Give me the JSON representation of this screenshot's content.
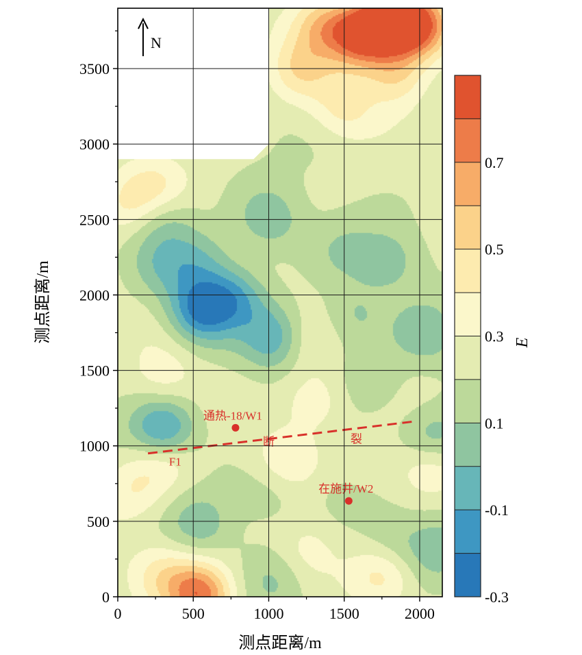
{
  "chart_data": {
    "type": "heatmap",
    "title": "",
    "xlabel": "测点距离/m",
    "ylabel": "测点距离/m",
    "xlim": [
      0,
      2150
    ],
    "ylim": [
      0,
      3900
    ],
    "x_ticks": [
      0,
      500,
      1000,
      1500,
      2000
    ],
    "y_ticks": [
      0,
      500,
      1000,
      1500,
      2000,
      2500,
      3000,
      3500
    ],
    "grid": true,
    "north_arrow_label": "N",
    "no_data_region": [
      [
        0,
        2900
      ],
      [
        900,
        2900
      ],
      [
        1000,
        3000
      ],
      [
        1000,
        3900
      ],
      [
        0,
        3900
      ]
    ],
    "colorbar": {
      "label": "E",
      "range": [
        -0.3,
        0.9
      ],
      "step": 0.1,
      "tick_labels": [
        "0.7",
        "0.5",
        "0.3",
        "0.1",
        "-0.1",
        "-0.3"
      ],
      "tick_values": [
        0.7,
        0.5,
        0.3,
        0.1,
        -0.1,
        -0.3
      ],
      "colors": [
        "#2878b8",
        "#3e97c2",
        "#67b6b8",
        "#8fc5a0",
        "#bcd99a",
        "#e4ecb2",
        "#fbf7cb",
        "#fdebaf",
        "#fbd28a",
        "#f7ac68",
        "#ed7c49",
        "#e0532f"
      ]
    },
    "field_base_value": 0.22,
    "anomalies": [
      {
        "x": 1800,
        "y": 3800,
        "value": 0.85
      },
      {
        "x": 1600,
        "y": 3720,
        "value": 0.78
      },
      {
        "x": 2000,
        "y": 3780,
        "value": 0.75
      },
      {
        "x": 1350,
        "y": 3800,
        "value": 0.55
      },
      {
        "x": 1850,
        "y": 3450,
        "value": 0.5
      },
      {
        "x": 1200,
        "y": 3500,
        "value": 0.45
      },
      {
        "x": 1500,
        "y": 3250,
        "value": 0.42
      },
      {
        "x": 250,
        "y": 2700,
        "value": 0.42
      },
      {
        "x": 50,
        "y": 2600,
        "value": 0.4
      },
      {
        "x": 1000,
        "y": 2500,
        "value": 0.02
      },
      {
        "x": 300,
        "y": 2520,
        "value": 0.05
      },
      {
        "x": 550,
        "y": 2230,
        "value": 0.05
      },
      {
        "x": 300,
        "y": 2200,
        "value": 0.08
      },
      {
        "x": 1800,
        "y": 2230,
        "value": 0.05
      },
      {
        "x": 1500,
        "y": 2300,
        "value": 0.12
      },
      {
        "x": 550,
        "y": 1900,
        "value": -0.2
      },
      {
        "x": 780,
        "y": 1990,
        "value": -0.05
      },
      {
        "x": 1050,
        "y": 1720,
        "value": -0.1
      },
      {
        "x": 1550,
        "y": 1850,
        "value": 0.08
      },
      {
        "x": 2050,
        "y": 1750,
        "value": 0.05
      },
      {
        "x": 300,
        "y": 1100,
        "value": -0.18
      },
      {
        "x": 1700,
        "y": 1450,
        "value": 0.08
      },
      {
        "x": 2100,
        "y": 1050,
        "value": 0.0
      },
      {
        "x": 1200,
        "y": 1700,
        "value": 0.35
      },
      {
        "x": 300,
        "y": 1450,
        "value": 0.35
      },
      {
        "x": 1300,
        "y": 1300,
        "value": 0.4
      },
      {
        "x": 300,
        "y": 920,
        "value": 0.42
      },
      {
        "x": 1100,
        "y": 900,
        "value": 0.38
      },
      {
        "x": 1650,
        "y": 850,
        "value": 0.35
      },
      {
        "x": 2050,
        "y": 850,
        "value": 0.42
      },
      {
        "x": 1000,
        "y": 700,
        "value": 0.12
      },
      {
        "x": 1550,
        "y": 700,
        "value": 0.12
      },
      {
        "x": 550,
        "y": 480,
        "value": 0.05
      },
      {
        "x": 1800,
        "y": 350,
        "value": 0.08
      },
      {
        "x": 1250,
        "y": 300,
        "value": 0.35
      },
      {
        "x": 300,
        "y": 150,
        "value": 0.4
      },
      {
        "x": 550,
        "y": 20,
        "value": 0.75
      },
      {
        "x": 1050,
        "y": 120,
        "value": 0.1
      },
      {
        "x": 1750,
        "y": 150,
        "value": 0.45
      },
      {
        "x": 2100,
        "y": 300,
        "value": 0.05
      },
      {
        "x": 100,
        "y": 700,
        "value": 0.38
      }
    ],
    "fault_line": {
      "label": "F1",
      "label_extra": [
        "断",
        "裂"
      ],
      "from": [
        200,
        950
      ],
      "to": [
        1950,
        1160
      ],
      "color": "#d8302a"
    },
    "wells": [
      {
        "label": "通热-18/W1",
        "x": 780,
        "y": 1120,
        "color": "#d8302a"
      },
      {
        "label": "在施井/W2",
        "x": 1530,
        "y": 635,
        "color": "#d8302a"
      }
    ]
  }
}
